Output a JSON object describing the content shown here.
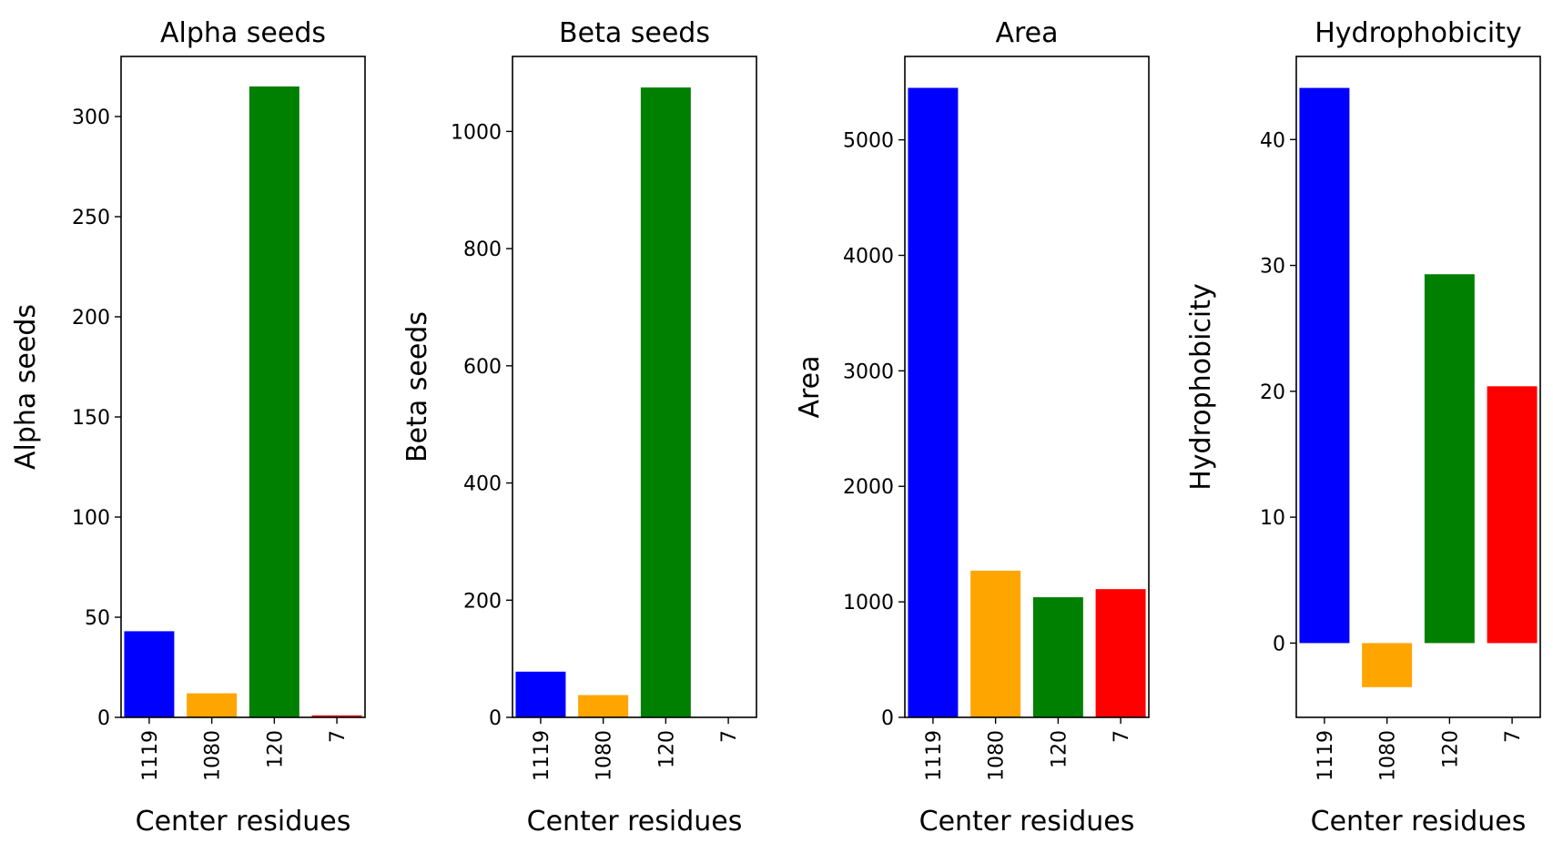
{
  "chart_data": [
    {
      "type": "bar",
      "title": "Alpha seeds",
      "xlabel": "Center residues",
      "ylabel": "Alpha seeds",
      "categories": [
        "1119",
        "1080",
        "120",
        "7"
      ],
      "values": [
        43,
        12,
        315,
        1
      ],
      "colors": [
        "#0000ff",
        "#ffa500",
        "#008000",
        "#ff0000"
      ],
      "ylim": [
        0,
        330
      ],
      "yticks": [
        0,
        50,
        100,
        150,
        200,
        250,
        300
      ]
    },
    {
      "type": "bar",
      "title": "Beta seeds",
      "xlabel": "Center residues",
      "ylabel": "Beta seeds",
      "categories": [
        "1119",
        "1080",
        "120",
        "7"
      ],
      "values": [
        78,
        38,
        1075,
        0
      ],
      "colors": [
        "#0000ff",
        "#ffa500",
        "#008000",
        "#ff0000"
      ],
      "ylim": [
        0,
        1128
      ],
      "yticks": [
        0,
        200,
        400,
        600,
        800,
        1000
      ]
    },
    {
      "type": "bar",
      "title": "Area",
      "xlabel": "Center residues",
      "ylabel": "Area",
      "categories": [
        "1119",
        "1080",
        "120",
        "7"
      ],
      "values": [
        5450,
        1270,
        1040,
        1110
      ],
      "colors": [
        "#0000ff",
        "#ffa500",
        "#008000",
        "#ff0000"
      ],
      "ylim": [
        0,
        5722
      ],
      "yticks": [
        0,
        1000,
        2000,
        3000,
        4000,
        5000
      ]
    },
    {
      "type": "bar",
      "title": "Hydrophobicity",
      "xlabel": "Center residues",
      "ylabel": "Hydrophobicity",
      "categories": [
        "1119",
        "1080",
        "120",
        "7"
      ],
      "values": [
        44.1,
        -3.5,
        29.3,
        20.4
      ],
      "colors": [
        "#0000ff",
        "#ffa500",
        "#008000",
        "#ff0000"
      ],
      "ylim": [
        -5.9,
        46.6
      ],
      "yticks": [
        0,
        10,
        20,
        30,
        40
      ]
    }
  ]
}
